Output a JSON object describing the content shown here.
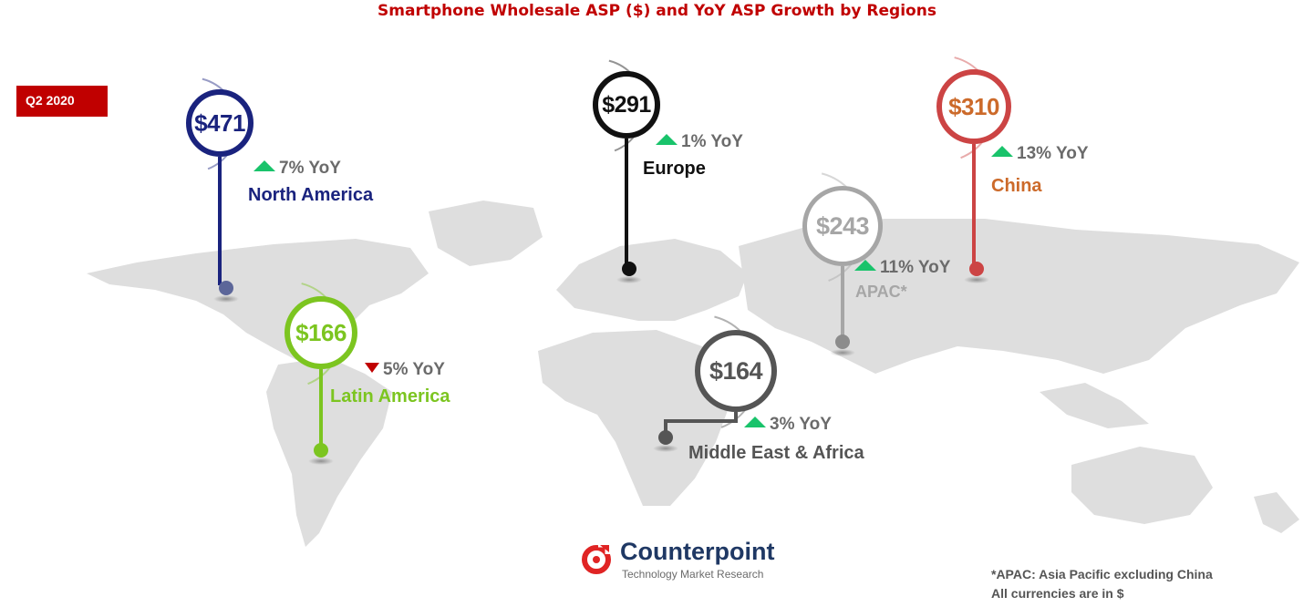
{
  "title": "Smartphone Wholesale ASP ($) and YoY ASP Growth by Regions",
  "period": "Q2 2020",
  "regions": [
    {
      "id": "north-america",
      "name": "North America",
      "asp": "$471",
      "yoy": "7% YoY",
      "direction": "up",
      "color": "#1a237e",
      "dot_color": "#5c6699"
    },
    {
      "id": "europe",
      "name": "Europe",
      "asp": "$291",
      "yoy": "1% YoY",
      "direction": "up",
      "color": "#111111",
      "dot_color": "#111111"
    },
    {
      "id": "china",
      "name": "China",
      "asp": "$310",
      "yoy": "13% YoY",
      "direction": "up",
      "color": "#cc4444",
      "text_color": "#cc6a2a",
      "dot_color": "#cc4444"
    },
    {
      "id": "apac",
      "name": "APAC*",
      "asp": "$243",
      "yoy": "11% YoY",
      "direction": "up",
      "color": "#a6a6a6",
      "dot_color": "#8c8c8c"
    },
    {
      "id": "latin-america",
      "name": "Latin America",
      "asp": "$166",
      "yoy": "5% YoY",
      "direction": "down",
      "color": "#7cc520",
      "dot_color": "#7cc520"
    },
    {
      "id": "mea",
      "name": "Middle East & Africa",
      "asp": "$164",
      "yoy": "3% YoY",
      "direction": "up",
      "color": "#555555",
      "dot_color": "#555555"
    }
  ],
  "colors": {
    "up_arrow": "#19c36b",
    "down_arrow": "#c00000",
    "title": "#c00000",
    "map": "#dedede"
  },
  "logo": {
    "name": "Counterpoint",
    "tagline": "Technology Market Research"
  },
  "footnote": [
    "*APAC: Asia Pacific excluding China",
    "All currencies are in $"
  ]
}
